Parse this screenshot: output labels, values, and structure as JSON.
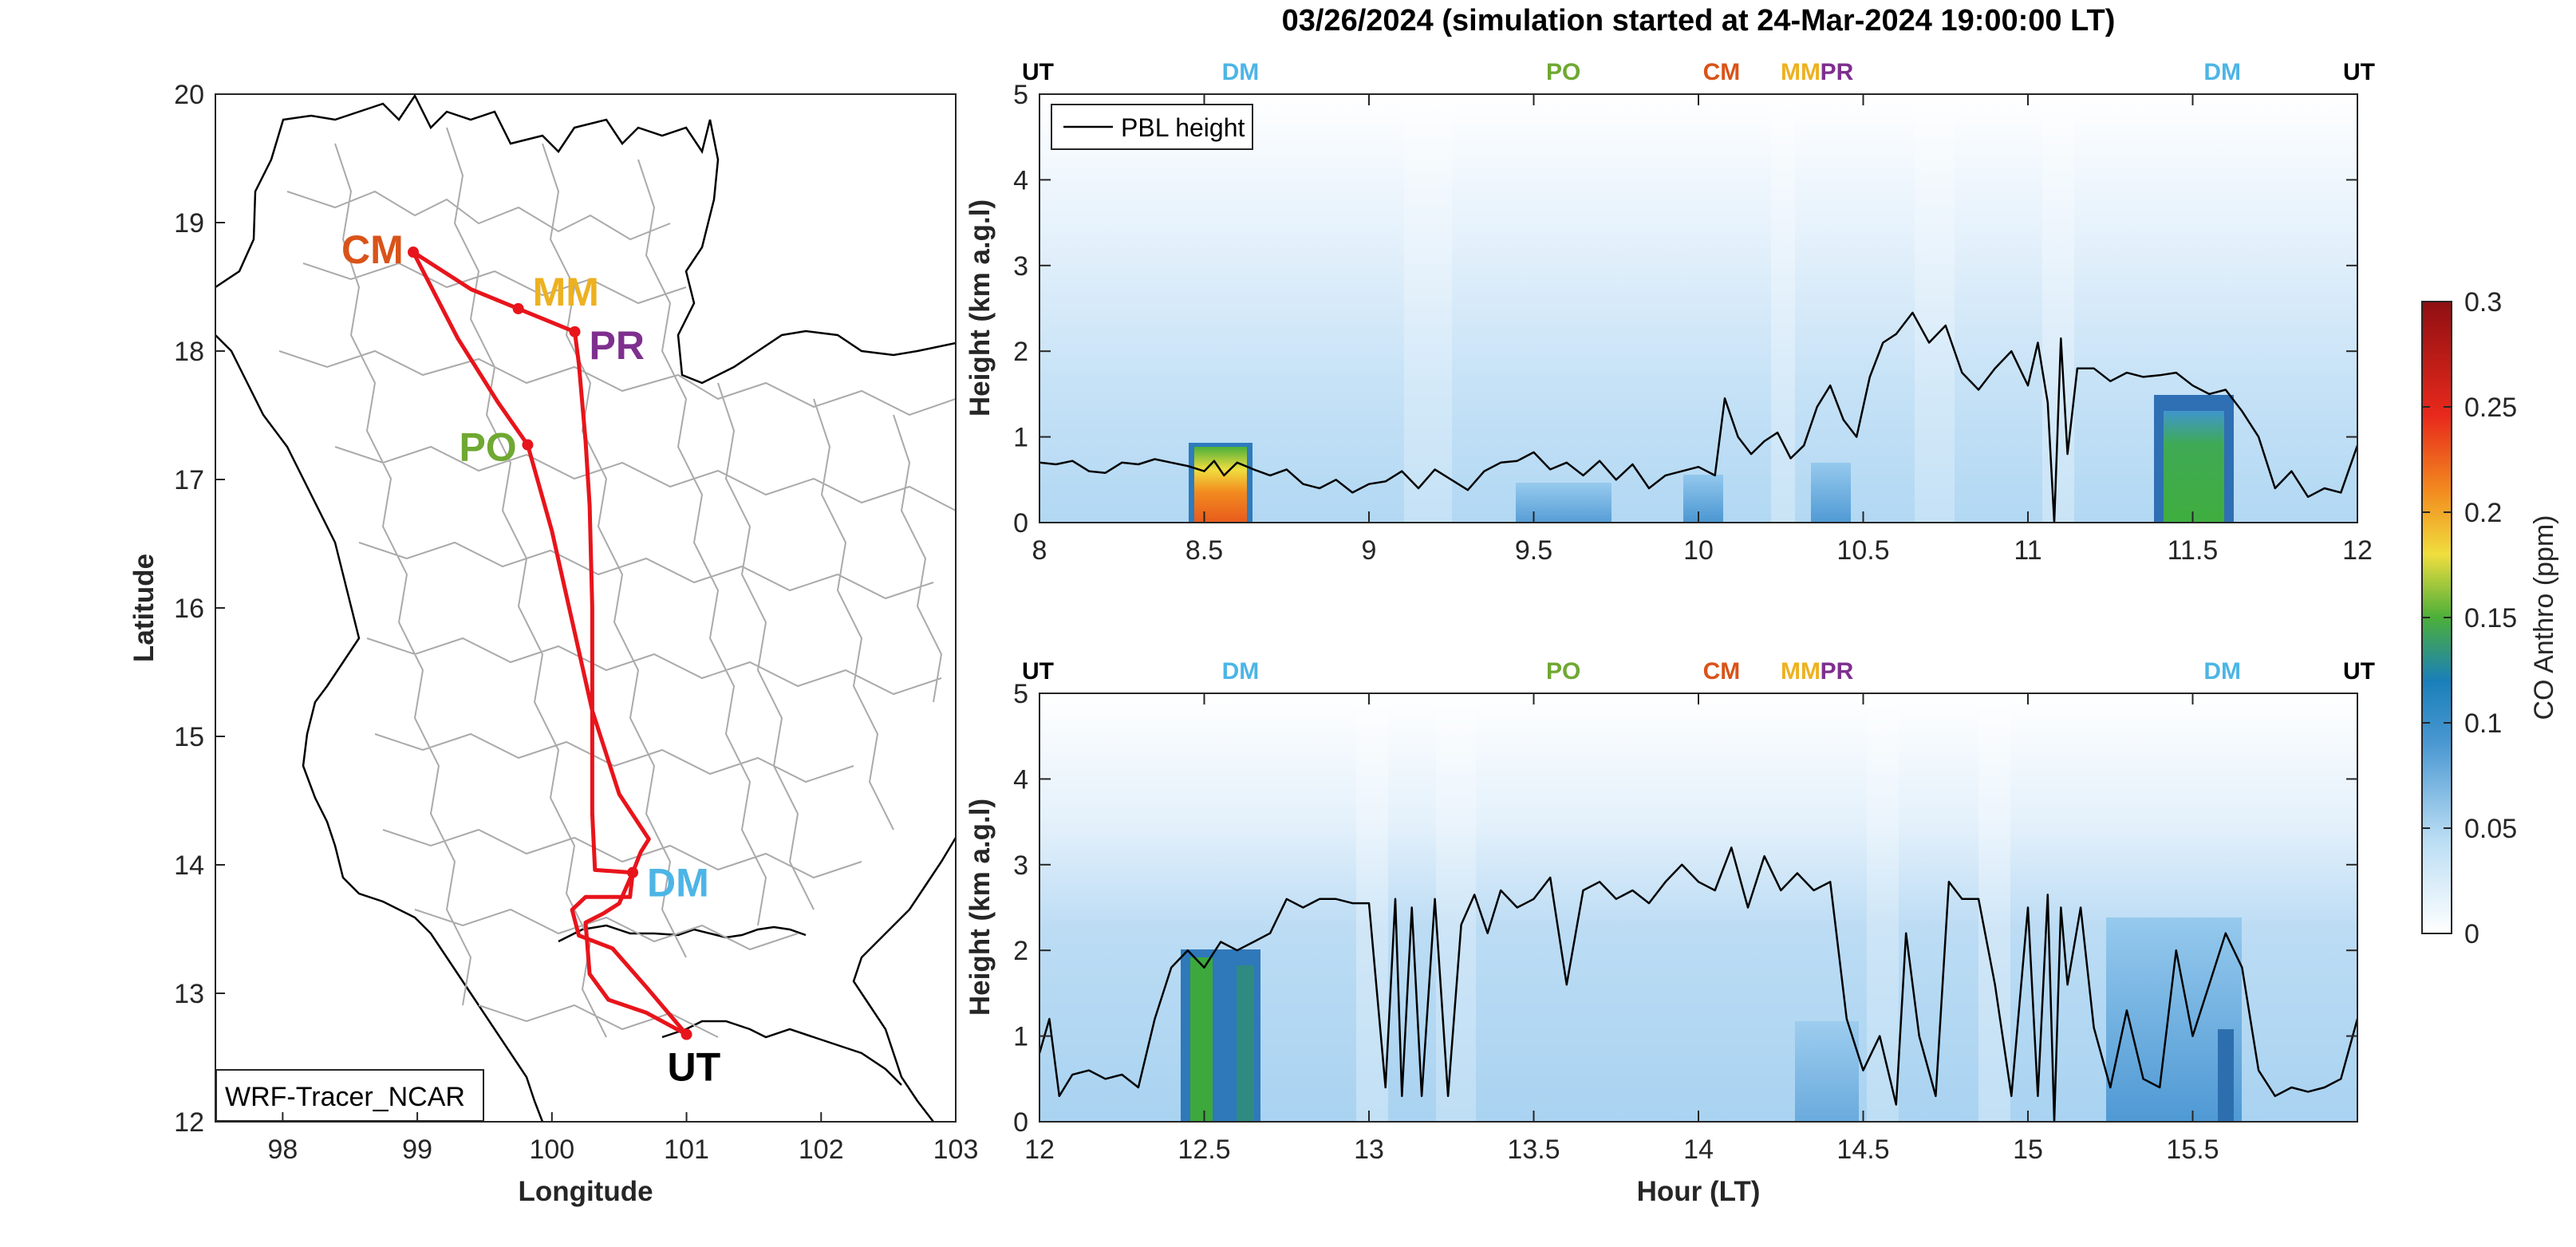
{
  "figure": {
    "title": "03/26/2024 (simulation started at 24-Mar-2024 19:00:00 LT)"
  },
  "colors": {
    "route": "#e8141b",
    "UT": "#000000",
    "DM": "#4db5e6",
    "PO": "#6fa832",
    "CM": "#d95319",
    "MM": "#edb120",
    "PR": "#7e2f8e",
    "pbl": "#000000",
    "borders": "#aaaaaa"
  },
  "map": {
    "xlabel": "Longitude",
    "ylabel": "Latitude",
    "xlim": [
      97.5,
      103
    ],
    "ylim": [
      12,
      20
    ],
    "xticks": [
      98,
      99,
      100,
      101,
      102,
      103
    ],
    "yticks": [
      12,
      13,
      14,
      15,
      16,
      17,
      18,
      19,
      20
    ],
    "label_box": "WRF-Tracer_NCAR",
    "sites": [
      {
        "name": "CM",
        "lon": 98.97,
        "lat": 18.77
      },
      {
        "name": "MM",
        "lon": 99.75,
        "lat": 18.33
      },
      {
        "name": "PR",
        "lon": 100.17,
        "lat": 18.15
      },
      {
        "name": "PO",
        "lon": 99.82,
        "lat": 17.27
      },
      {
        "name": "DM",
        "lon": 100.6,
        "lat": 13.94
      },
      {
        "name": "UT",
        "lon": 101.0,
        "lat": 12.68
      }
    ],
    "route": [
      [
        101.0,
        12.68
      ],
      [
        100.7,
        12.85
      ],
      [
        100.42,
        12.95
      ],
      [
        100.28,
        13.15
      ],
      [
        100.25,
        13.55
      ],
      [
        100.38,
        13.62
      ],
      [
        100.5,
        13.7
      ],
      [
        100.6,
        13.94
      ],
      [
        100.66,
        14.1
      ],
      [
        100.72,
        14.2
      ],
      [
        100.5,
        14.55
      ],
      [
        100.3,
        15.2
      ],
      [
        100.15,
        15.9
      ],
      [
        100.0,
        16.6
      ],
      [
        99.82,
        17.27
      ],
      [
        99.6,
        17.6
      ],
      [
        99.3,
        18.1
      ],
      [
        98.97,
        18.77
      ],
      [
        99.4,
        18.48
      ],
      [
        99.75,
        18.33
      ],
      [
        100.17,
        18.15
      ],
      [
        100.2,
        17.9
      ],
      [
        100.25,
        17.3
      ],
      [
        100.28,
        16.8
      ],
      [
        100.3,
        16.0
      ],
      [
        100.3,
        15.0
      ],
      [
        100.3,
        14.4
      ],
      [
        100.32,
        13.96
      ],
      [
        100.6,
        13.94
      ],
      [
        100.58,
        13.75
      ],
      [
        100.25,
        13.75
      ],
      [
        100.15,
        13.65
      ],
      [
        100.2,
        13.45
      ],
      [
        100.45,
        13.35
      ],
      [
        100.7,
        13.05
      ],
      [
        101.0,
        12.68
      ]
    ]
  },
  "chart_data": [
    {
      "type": "heatmap",
      "panel": "top",
      "xlim": [
        8,
        12
      ],
      "ylim": [
        0,
        5
      ],
      "xticks": [
        8,
        8.5,
        9,
        9.5,
        10,
        10.5,
        11,
        11.5,
        12
      ],
      "yticks": [
        0,
        1,
        2,
        3,
        4,
        5
      ],
      "xlabel": "",
      "ylabel": "Height (km a.g.l)",
      "legend": {
        "entries": [
          "PBL height"
        ],
        "location": "top-left"
      },
      "site_markers": [
        {
          "label": "UT",
          "x": 8.0
        },
        {
          "label": "DM",
          "x": 8.61
        },
        {
          "label": "PO",
          "x": 9.59
        },
        {
          "label": "CM",
          "x": 10.07
        },
        {
          "label": "MM",
          "x": 10.31
        },
        {
          "label": "PR",
          "x": 10.42
        },
        {
          "label": "DM",
          "x": 11.59
        },
        {
          "label": "UT",
          "x": 11.97
        }
      ],
      "pbl_height": {
        "x": [
          8.0,
          8.05,
          8.1,
          8.15,
          8.2,
          8.25,
          8.3,
          8.35,
          8.4,
          8.45,
          8.5,
          8.53,
          8.56,
          8.6,
          8.65,
          8.7,
          8.75,
          8.8,
          8.85,
          8.9,
          8.95,
          9.0,
          9.05,
          9.1,
          9.15,
          9.2,
          9.25,
          9.3,
          9.35,
          9.4,
          9.45,
          9.5,
          9.55,
          9.6,
          9.65,
          9.7,
          9.75,
          9.8,
          9.85,
          9.9,
          9.95,
          10.0,
          10.05,
          10.08,
          10.12,
          10.16,
          10.2,
          10.24,
          10.28,
          10.32,
          10.36,
          10.4,
          10.44,
          10.48,
          10.52,
          10.56,
          10.6,
          10.65,
          10.7,
          10.75,
          10.8,
          10.85,
          10.9,
          10.95,
          11.0,
          11.03,
          11.06,
          11.08,
          11.1,
          11.12,
          11.15,
          11.2,
          11.25,
          11.3,
          11.35,
          11.4,
          11.45,
          11.5,
          11.55,
          11.6,
          11.65,
          11.7,
          11.75,
          11.8,
          11.85,
          11.9,
          11.95,
          12.0
        ],
        "y": [
          0.7,
          0.68,
          0.72,
          0.6,
          0.58,
          0.7,
          0.68,
          0.74,
          0.7,
          0.66,
          0.6,
          0.72,
          0.55,
          0.7,
          0.62,
          0.55,
          0.62,
          0.45,
          0.4,
          0.5,
          0.35,
          0.45,
          0.48,
          0.6,
          0.4,
          0.62,
          0.5,
          0.38,
          0.6,
          0.7,
          0.72,
          0.82,
          0.62,
          0.7,
          0.55,
          0.72,
          0.5,
          0.68,
          0.4,
          0.55,
          0.6,
          0.65,
          0.55,
          1.45,
          1.0,
          0.8,
          0.95,
          1.05,
          0.75,
          0.9,
          1.35,
          1.6,
          1.2,
          1.0,
          1.7,
          2.1,
          2.2,
          2.45,
          2.1,
          2.3,
          1.75,
          1.55,
          1.8,
          2.0,
          1.6,
          2.1,
          1.4,
          0.0,
          2.15,
          0.8,
          1.8,
          1.8,
          1.65,
          1.75,
          1.7,
          1.72,
          1.75,
          1.6,
          1.5,
          1.55,
          1.3,
          1.0,
          0.4,
          0.6,
          0.3,
          0.4,
          0.35,
          0.9
        ]
      }
    },
    {
      "type": "heatmap",
      "panel": "bottom",
      "xlim": [
        12,
        16
      ],
      "ylim": [
        0,
        5
      ],
      "xticks": [
        12,
        12.5,
        13,
        13.5,
        14,
        14.5,
        15,
        15.5
      ],
      "yticks": [
        0,
        1,
        2,
        3,
        4,
        5
      ],
      "xlabel": "Hour (LT)",
      "ylabel": "Height (km a.g.l)",
      "site_markers": [
        {
          "label": "UT",
          "x": 12.0
        },
        {
          "label": "DM",
          "x": 12.61
        },
        {
          "label": "PO",
          "x": 13.59
        },
        {
          "label": "CM",
          "x": 14.07
        },
        {
          "label": "MM",
          "x": 14.31
        },
        {
          "label": "PR",
          "x": 14.42
        },
        {
          "label": "DM",
          "x": 15.59
        },
        {
          "label": "UT",
          "x": 15.97
        }
      ],
      "pbl_height": {
        "x": [
          12.0,
          12.03,
          12.06,
          12.1,
          12.15,
          12.2,
          12.25,
          12.3,
          12.35,
          12.4,
          12.45,
          12.5,
          12.55,
          12.6,
          12.65,
          12.7,
          12.75,
          12.8,
          12.85,
          12.9,
          12.95,
          13.0,
          13.05,
          13.08,
          13.1,
          13.13,
          13.16,
          13.2,
          13.24,
          13.28,
          13.32,
          13.36,
          13.4,
          13.45,
          13.5,
          13.55,
          13.6,
          13.65,
          13.7,
          13.75,
          13.8,
          13.85,
          13.9,
          13.95,
          14.0,
          14.05,
          14.1,
          14.15,
          14.2,
          14.25,
          14.3,
          14.35,
          14.4,
          14.45,
          14.5,
          14.55,
          14.6,
          14.63,
          14.67,
          14.72,
          14.76,
          14.8,
          14.85,
          14.9,
          14.95,
          15.0,
          15.03,
          15.06,
          15.08,
          15.1,
          15.12,
          15.16,
          15.2,
          15.25,
          15.3,
          15.35,
          15.4,
          15.45,
          15.5,
          15.55,
          15.6,
          15.65,
          15.7,
          15.75,
          15.8,
          15.85,
          15.9,
          15.95,
          16.0
        ],
        "y": [
          0.8,
          1.2,
          0.3,
          0.55,
          0.6,
          0.5,
          0.55,
          0.4,
          1.2,
          1.8,
          2.0,
          1.8,
          2.1,
          2.0,
          2.1,
          2.2,
          2.6,
          2.5,
          2.6,
          2.6,
          2.55,
          2.55,
          0.4,
          2.6,
          0.3,
          2.5,
          0.3,
          2.6,
          0.3,
          2.3,
          2.65,
          2.2,
          2.7,
          2.5,
          2.6,
          2.85,
          1.6,
          2.7,
          2.8,
          2.6,
          2.7,
          2.55,
          2.8,
          3.0,
          2.8,
          2.7,
          3.2,
          2.5,
          3.1,
          2.7,
          2.9,
          2.7,
          2.8,
          1.2,
          0.6,
          1.0,
          0.2,
          2.2,
          1.0,
          0.3,
          2.8,
          2.6,
          2.6,
          1.6,
          0.3,
          2.5,
          0.3,
          2.65,
          0.0,
          2.5,
          1.6,
          2.5,
          1.1,
          0.4,
          1.3,
          0.5,
          0.4,
          2.0,
          1.0,
          1.6,
          2.2,
          1.8,
          0.6,
          0.3,
          0.4,
          0.35,
          0.4,
          0.5,
          1.2
        ]
      }
    }
  ],
  "colorbar": {
    "label": "CO Anthro (ppm)",
    "ticks": [
      0,
      0.05,
      0.1,
      0.15,
      0.2,
      0.25,
      0.3
    ],
    "range": [
      0,
      0.3
    ]
  }
}
